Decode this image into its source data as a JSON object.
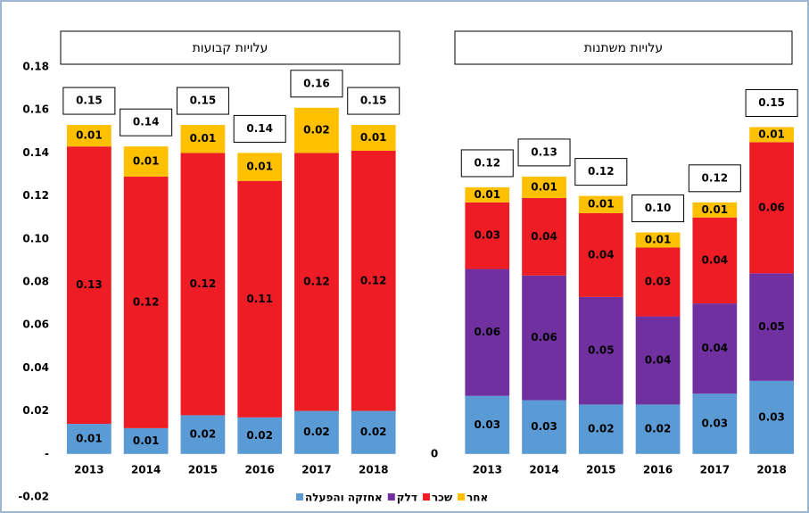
{
  "chart_data": {
    "type": "stacked_bar",
    "group_titles": [
      "עלויות קבועות",
      "עלויות משתנות"
    ],
    "annotations": [
      "0"
    ],
    "categories": [
      "2013",
      "2014",
      "2015",
      "2016",
      "2017",
      "2018",
      null,
      "2013",
      "2014",
      "2015",
      "2016",
      "2017",
      "2018"
    ],
    "series": [
      {
        "name": "אחזקה והפעלה",
        "color": "#5b9bd5",
        "values": [
          0.014,
          0.012,
          0.018,
          0.017,
          0.02,
          0.02,
          null,
          0.027,
          0.025,
          0.023,
          0.023,
          0.028,
          0.034
        ],
        "value_labels": [
          "0.01",
          "0.01",
          "0.02",
          "0.02",
          "0.02",
          "0.02",
          null,
          "0.03",
          "0.03",
          "0.02",
          "0.02",
          "0.03",
          "0.03"
        ]
      },
      {
        "name": "דלק",
        "color": "#7030a0",
        "values": [
          null,
          null,
          null,
          null,
          null,
          null,
          null,
          0.059,
          0.058,
          0.05,
          0.041,
          0.042,
          0.05
        ],
        "value_labels": [
          null,
          null,
          null,
          null,
          null,
          null,
          null,
          "0.06",
          "0.06",
          "0.05",
          "0.04",
          "0.04",
          "0.05"
        ]
      },
      {
        "name": "שכר",
        "color": "#ee1c24",
        "values": [
          0.129,
          0.117,
          0.122,
          0.11,
          0.12,
          0.121,
          null,
          0.031,
          0.036,
          0.039,
          0.032,
          0.04,
          0.061
        ],
        "value_labels": [
          "0.13",
          "0.12",
          "0.12",
          "0.11",
          "0.12",
          "0.12",
          null,
          "0.03",
          "0.04",
          "0.04",
          "0.03",
          "0.04",
          "0.06"
        ]
      },
      {
        "name": "אחר",
        "color": "#ffc000",
        "values": [
          0.01,
          0.014,
          0.013,
          0.013,
          0.021,
          0.012,
          null,
          0.007,
          0.01,
          0.008,
          0.007,
          0.007,
          0.007
        ],
        "value_labels": [
          "0.01",
          "0.01",
          "0.01",
          "0.01",
          "0.02",
          "0.01",
          null,
          "0.01",
          "0.01",
          "0.01",
          "0.01",
          "0.01",
          "0.01"
        ]
      }
    ],
    "totals": [
      0.153,
      0.143,
      0.153,
      0.14,
      0.161,
      0.153,
      null,
      0.124,
      0.129,
      0.12,
      0.103,
      0.117,
      0.152
    ],
    "total_labels": [
      "0.15",
      "0.14",
      "0.15",
      "0.14",
      "0.16",
      "0.15",
      null,
      "0.12",
      "0.13",
      "0.12",
      "0.10",
      "0.12",
      "0.15"
    ],
    "ylim": [
      -0.02,
      0.18
    ],
    "yticks": [
      -0.02,
      {
        "value": 0,
        "label": "-"
      },
      0.02,
      0.04,
      0.06,
      0.08,
      {
        "value": 0.1,
        "label": "0.10"
      },
      0.12,
      0.14,
      0.16,
      0.18
    ],
    "grid": false,
    "legend": "bottom"
  }
}
